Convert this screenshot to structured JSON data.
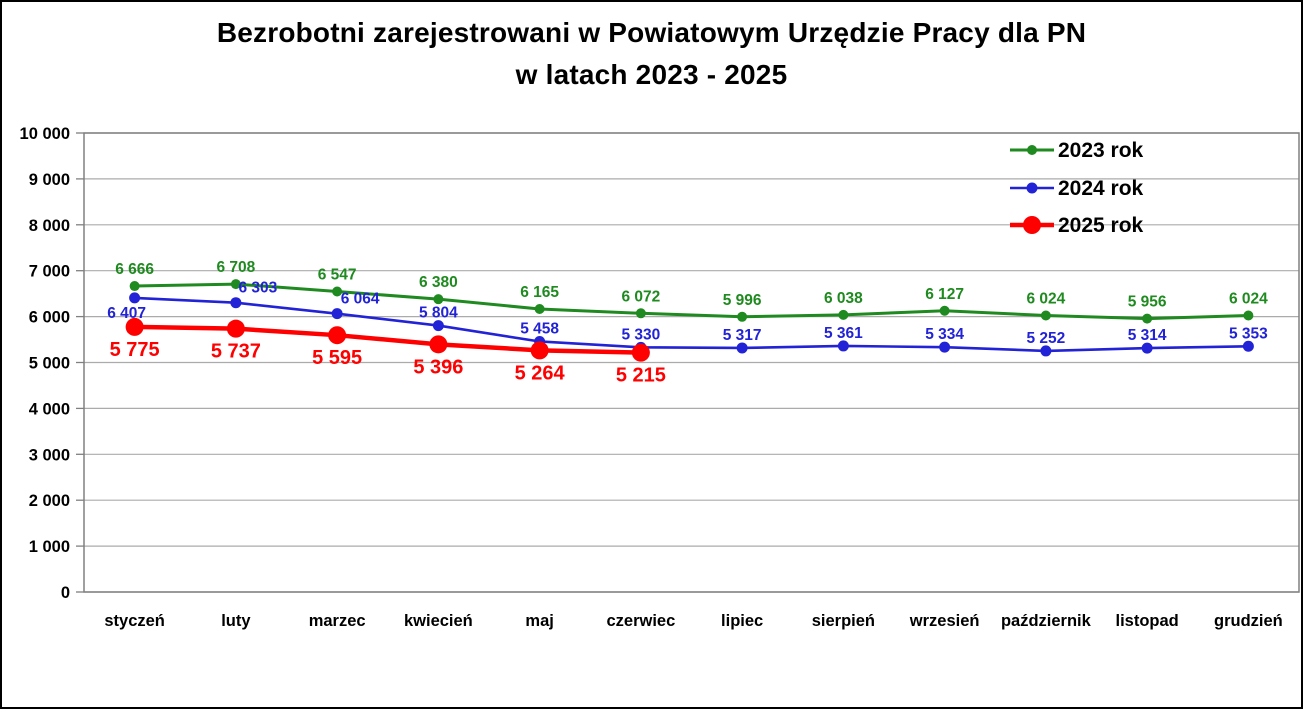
{
  "figure": {
    "title_line1": "Bezrobotni zarejestrowani w Powiatowym Urzędzie Pracy dla PN",
    "title_line2": "w latach 2023 - 2025"
  },
  "chart_data": {
    "type": "line",
    "title": "Bezrobotni zarejestrowani w Powiatowym Urzędzie Pracy dla PN w latach 2023 - 2025",
    "categories": [
      "styczeń",
      "luty",
      "marzec",
      "kwiecień",
      "maj",
      "czerwiec",
      "lipiec",
      "sierpień",
      "wrzesień",
      "październik",
      "listopad",
      "grudzień"
    ],
    "series": [
      {
        "name": "2023 rok",
        "color": "#1f8a1f",
        "values": [
          6666,
          6708,
          6547,
          6380,
          6165,
          6072,
          5996,
          6038,
          6127,
          6024,
          5956,
          6024
        ]
      },
      {
        "name": "2024 rok",
        "color": "#2222d6",
        "values": [
          6407,
          6303,
          6064,
          5804,
          5458,
          5330,
          5317,
          5361,
          5334,
          5252,
          5314,
          5353
        ]
      },
      {
        "name": "2025 rok",
        "color": "#fe0000",
        "values": [
          5775,
          5737,
          5595,
          5396,
          5264,
          5215
        ]
      }
    ],
    "xlabel": "",
    "ylabel": "",
    "ylim": [
      0,
      10000
    ],
    "ytick_step": 1000,
    "ytick_labels": [
      "0",
      "1 000",
      "2 000",
      "3 000",
      "4 000",
      "5 000",
      "6 000",
      "7 000",
      "8 000",
      "9 000",
      "10 000"
    ],
    "grid": "horizontal",
    "gridline_color": "#ababab",
    "plot_border_color": "#808080",
    "data_labels": true,
    "number_format": "space-thousands",
    "legend_position": "top-right-inside",
    "legend": [
      "2023 rok",
      "2024 rok",
      "2025 rok"
    ]
  }
}
